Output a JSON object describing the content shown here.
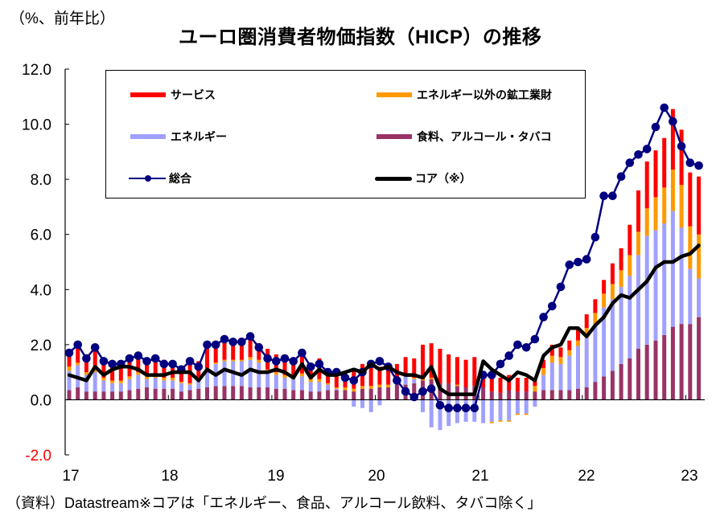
{
  "unit_label": "（%、前年比）",
  "title": "ユーロ圏消費者物価指数（HICP）の推移",
  "source_note": "（資料）Datastream※コアは「エネルギー、食品、アルコール飲料、タバコ除く」",
  "legend": {
    "services": "サービス",
    "neig": "エネルギー以外の鉱工業財",
    "energy": "エネルギー",
    "food": "食料、アルコール・タバコ",
    "hicp": "総合",
    "core": "コア（※）"
  },
  "colors": {
    "services": "#ff0000",
    "neig": "#ff9900",
    "energy": "#a0a0ff",
    "food": "#993366",
    "hicp": "#000080",
    "core": "#000000",
    "negative_tick": "#ff0000"
  },
  "chart_data": {
    "type": "bar",
    "title": "ユーロ圏消費者物価指数（HICP）の推移",
    "ylabel": "（%、前年比）",
    "xlabel": "",
    "ylim": [
      -2.0,
      12.0
    ],
    "yticks": [
      "12.0",
      "10.0",
      "8.0",
      "6.0",
      "4.0",
      "2.0",
      "0.0",
      "-2.0"
    ],
    "ytick_values": [
      12,
      10,
      8,
      6,
      4,
      2,
      0,
      -2
    ],
    "xtick_labels": [
      "17",
      "18",
      "19",
      "20",
      "21",
      "22",
      "23"
    ],
    "start": "2017-01",
    "frequency": "monthly",
    "legend_position": "top (boxed, inside plot)",
    "stacked": true,
    "series": [
      {
        "name": "食料、アルコール・タバコ",
        "key": "food",
        "kind": "bar",
        "values": [
          0.35,
          0.45,
          0.3,
          0.3,
          0.3,
          0.3,
          0.3,
          0.35,
          0.4,
          0.45,
          0.4,
          0.4,
          0.4,
          0.3,
          0.35,
          0.4,
          0.45,
          0.5,
          0.5,
          0.5,
          0.5,
          0.45,
          0.45,
          0.45,
          0.4,
          0.4,
          0.35,
          0.35,
          0.3,
          0.3,
          0.35,
          0.35,
          0.35,
          0.3,
          0.4,
          0.4,
          0.45,
          0.45,
          0.55,
          0.55,
          0.6,
          0.7,
          0.75,
          0.6,
          0.6,
          0.5,
          0.45,
          0.5,
          0.45,
          0.3,
          0.25,
          0.35,
          0.3,
          0.3,
          0.3,
          0.35,
          0.35,
          0.35,
          0.35,
          0.4,
          0.45,
          0.65,
          0.85,
          1.05,
          1.3,
          1.5,
          1.85,
          2.0,
          2.15,
          2.35,
          2.65,
          2.75,
          2.75,
          3.0
        ]
      },
      {
        "name": "エネルギー",
        "key": "energy",
        "kind": "bar",
        "values": [
          0.7,
          0.8,
          0.6,
          0.7,
          0.4,
          0.3,
          0.3,
          0.4,
          0.5,
          0.3,
          0.4,
          0.3,
          0.3,
          0.3,
          0.2,
          0.3,
          0.6,
          0.8,
          0.9,
          0.9,
          0.9,
          1.0,
          0.9,
          0.55,
          0.5,
          0.4,
          0.4,
          0.5,
          0.35,
          0.35,
          0.2,
          0.05,
          0.0,
          -0.25,
          -0.3,
          -0.45,
          -0.2,
          0.0,
          0.15,
          0.3,
          0.15,
          -0.45,
          -1.0,
          -1.1,
          -0.95,
          -0.85,
          -0.8,
          -0.8,
          -0.85,
          -0.8,
          -0.75,
          -0.75,
          -0.5,
          -0.5,
          -0.25,
          0.55,
          1.0,
          0.95,
          1.25,
          1.55,
          1.8,
          2.05,
          2.5,
          2.6,
          2.8,
          3.0,
          3.4,
          3.95,
          4.0,
          4.05,
          4.2,
          3.5,
          2.0,
          1.4
        ]
      },
      {
        "name": "エネルギー以外の鉱工業財",
        "key": "neig",
        "kind": "bar",
        "values": [
          0.15,
          0.1,
          0.1,
          0.1,
          0.1,
          0.1,
          0.1,
          0.1,
          0.1,
          0.1,
          0.1,
          0.1,
          0.1,
          0.05,
          0.05,
          0.1,
          0.1,
          0.05,
          0.05,
          0.05,
          0.05,
          0.1,
          0.1,
          0.1,
          0.1,
          0.1,
          0.1,
          0.1,
          0.1,
          0.1,
          0.05,
          0.05,
          0.1,
          0.1,
          0.1,
          0.1,
          0.1,
          0.1,
          0.05,
          0.05,
          0.05,
          0.05,
          0.05,
          0.0,
          0.0,
          0.05,
          0.0,
          0.0,
          0.0,
          -0.05,
          -0.05,
          -0.05,
          -0.05,
          -0.05,
          0.2,
          0.25,
          0.25,
          0.25,
          0.2,
          0.2,
          0.35,
          0.45,
          0.5,
          0.55,
          0.6,
          0.75,
          0.85,
          1.0,
          1.2,
          1.3,
          1.5,
          1.55,
          1.55,
          1.6
        ]
      },
      {
        "name": "サービス",
        "key": "services",
        "kind": "bar",
        "values": [
          0.5,
          0.6,
          0.45,
          0.8,
          0.5,
          0.6,
          0.6,
          0.55,
          0.5,
          0.65,
          0.5,
          0.65,
          0.5,
          0.45,
          0.75,
          0.6,
          0.85,
          0.7,
          0.7,
          0.7,
          0.8,
          0.7,
          0.6,
          0.75,
          0.65,
          0.7,
          0.6,
          0.85,
          0.5,
          0.75,
          0.5,
          0.55,
          0.55,
          0.75,
          0.8,
          0.85,
          0.65,
          0.55,
          0.55,
          0.65,
          0.7,
          1.25,
          1.25,
          1.25,
          1.05,
          1.0,
          1.0,
          1.05,
          0.55,
          0.5,
          0.55,
          0.55,
          0.5,
          0.5,
          0.3,
          0.3,
          0.4,
          0.35,
          0.35,
          0.4,
          0.5,
          0.5,
          0.5,
          0.75,
          0.8,
          1.1,
          1.5,
          1.7,
          1.7,
          1.8,
          2.2,
          2.0,
          1.95,
          2.1
        ]
      },
      {
        "name": "総合",
        "key": "hicp",
        "kind": "line-marker",
        "values": [
          1.7,
          2.0,
          1.5,
          1.9,
          1.4,
          1.3,
          1.3,
          1.5,
          1.6,
          1.4,
          1.5,
          1.3,
          1.3,
          1.1,
          1.4,
          1.2,
          2.0,
          2.0,
          2.2,
          2.1,
          2.1,
          2.3,
          1.9,
          1.5,
          1.4,
          1.5,
          1.4,
          1.7,
          1.2,
          1.3,
          1.0,
          1.0,
          0.8,
          0.7,
          1.0,
          1.3,
          1.4,
          1.2,
          0.7,
          0.3,
          0.1,
          0.3,
          0.4,
          -0.2,
          -0.3,
          -0.3,
          -0.3,
          -0.3,
          0.9,
          0.9,
          1.3,
          1.6,
          2.0,
          1.9,
          2.2,
          3.0,
          3.4,
          4.1,
          4.9,
          5.0,
          5.1,
          5.9,
          7.4,
          7.4,
          8.1,
          8.6,
          8.9,
          9.1,
          9.9,
          10.6,
          10.1,
          9.2,
          8.6,
          8.5
        ]
      },
      {
        "name": "コア（※）",
        "key": "core",
        "kind": "line",
        "values": [
          0.9,
          0.8,
          0.7,
          1.2,
          0.9,
          1.1,
          1.2,
          1.2,
          1.1,
          0.9,
          0.9,
          0.9,
          1.0,
          1.0,
          1.0,
          0.7,
          1.1,
          0.9,
          1.1,
          1.0,
          0.9,
          1.1,
          1.0,
          1.0,
          1.1,
          1.0,
          0.8,
          1.3,
          0.8,
          1.1,
          0.9,
          0.9,
          1.0,
          1.1,
          1.0,
          1.3,
          1.1,
          1.2,
          1.0,
          0.9,
          0.9,
          0.8,
          1.2,
          0.4,
          0.2,
          0.2,
          0.2,
          0.2,
          1.4,
          1.1,
          0.9,
          0.7,
          1.0,
          0.9,
          0.7,
          1.6,
          1.9,
          2.0,
          2.6,
          2.6,
          2.3,
          2.7,
          3.0,
          3.5,
          3.8,
          3.7,
          4.0,
          4.3,
          4.8,
          5.0,
          5.0,
          5.2,
          5.3,
          5.6
        ]
      }
    ]
  }
}
